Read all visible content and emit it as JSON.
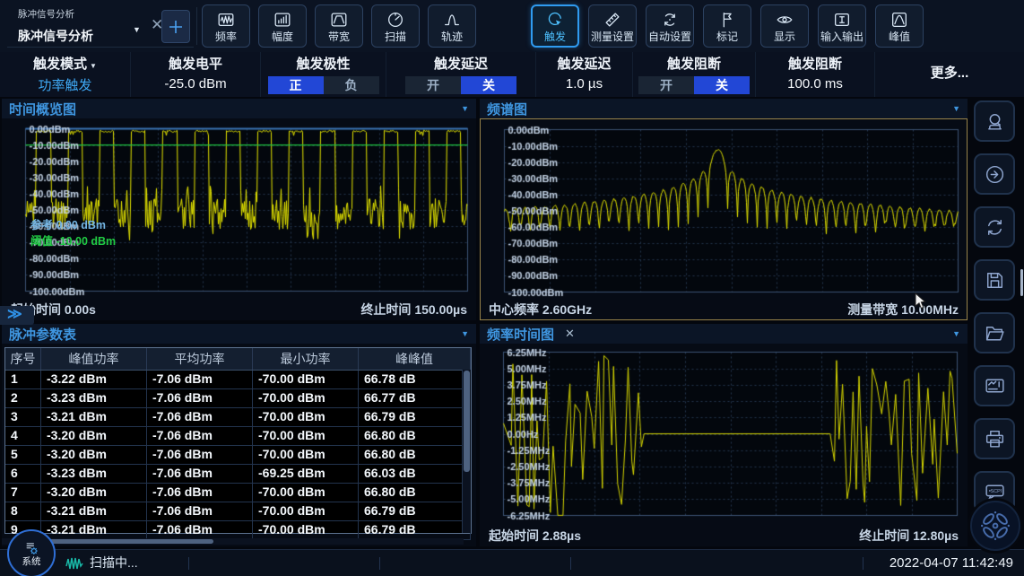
{
  "window": {
    "tab_small": "脉冲信号分析",
    "tab_title": "脉冲信号分析",
    "expand_handle": "≫"
  },
  "toolbar": {
    "buttons": [
      {
        "icon": "frequency",
        "label": "频率",
        "selected": false
      },
      {
        "icon": "amplitude",
        "label": "幅度",
        "selected": false
      },
      {
        "icon": "bandwidth",
        "label": "带宽",
        "selected": false
      },
      {
        "icon": "sweep",
        "label": "扫描",
        "selected": false
      },
      {
        "icon": "trace",
        "label": "轨迹",
        "selected": false
      },
      {
        "icon": "trigger",
        "label": "触发",
        "selected": true
      },
      {
        "icon": "measure-setup",
        "label": "测量设置",
        "selected": false
      },
      {
        "icon": "auto-setup",
        "label": "自动设置",
        "selected": false
      },
      {
        "icon": "marker",
        "label": "标记",
        "selected": false
      },
      {
        "icon": "display",
        "label": "显示",
        "selected": false
      },
      {
        "icon": "input-output",
        "label": "输入输出",
        "selected": false
      },
      {
        "icon": "peak",
        "label": "峰值",
        "selected": false
      }
    ]
  },
  "menu": {
    "columns": [
      {
        "type": "value",
        "label": "触发模式",
        "caret": true,
        "value": "功率触发",
        "accent": true
      },
      {
        "type": "value",
        "label": "触发电平",
        "value": "-25.0 dBm"
      },
      {
        "type": "toggle",
        "label": "触发极性",
        "options": [
          "正",
          "负"
        ],
        "selected": 0
      },
      {
        "type": "toggle",
        "label": "触发延迟",
        "options": [
          "开",
          "关"
        ],
        "selected": 1
      },
      {
        "type": "value",
        "label": "触发延迟",
        "value": "1.0 µs"
      },
      {
        "type": "toggle",
        "label": "触发阻断",
        "options": [
          "开",
          "关"
        ],
        "selected": 1
      },
      {
        "type": "value",
        "label": "触发阻断",
        "value": "100.0 ms"
      },
      {
        "type": "more",
        "label": "更多..."
      }
    ]
  },
  "panels": {
    "time_overview": {
      "title": "时间概览图",
      "footer_left": "起始时间 0.00s",
      "footer_right": "终止时间 150.00µs",
      "reference_label": "参考 0.00 dBm",
      "threshold_label": "阈值 -10.00 dBm"
    },
    "spectrum": {
      "title": "频谱图",
      "footer_left": "中心频率 2.60GHz",
      "footer_right": "测量带宽 10.00MHz",
      "focused": true
    },
    "pulse_table": {
      "title": "脉冲参数表",
      "headers": [
        "序号",
        "峰值功率",
        "平均功率",
        "最小功率",
        "峰峰值"
      ],
      "rows": [
        [
          "1",
          "-3.22 dBm",
          "-7.06 dBm",
          "-70.00 dBm",
          "66.78 dB"
        ],
        [
          "2",
          "-3.23 dBm",
          "-7.06 dBm",
          "-70.00 dBm",
          "66.77 dB"
        ],
        [
          "3",
          "-3.21 dBm",
          "-7.06 dBm",
          "-70.00 dBm",
          "66.79 dB"
        ],
        [
          "4",
          "-3.20 dBm",
          "-7.06 dBm",
          "-70.00 dBm",
          "66.80 dB"
        ],
        [
          "5",
          "-3.20 dBm",
          "-7.06 dBm",
          "-70.00 dBm",
          "66.80 dB"
        ],
        [
          "6",
          "-3.23 dBm",
          "-7.06 dBm",
          "-69.25 dBm",
          "66.03 dB"
        ],
        [
          "7",
          "-3.20 dBm",
          "-7.06 dBm",
          "-70.00 dBm",
          "66.80 dB"
        ],
        [
          "8",
          "-3.21 dBm",
          "-7.06 dBm",
          "-70.00 dBm",
          "66.79 dB"
        ],
        [
          "9",
          "-3.21 dBm",
          "-7.06 dBm",
          "-70.00 dBm",
          "66.79 dB"
        ]
      ]
    },
    "freq_time": {
      "title": "频率时间图",
      "close": "✕",
      "footer_left": "起始时间 2.88µs",
      "footer_right": "终止时间 12.80µs"
    }
  },
  "chart_data": [
    {
      "id": "time_overview",
      "type": "line",
      "title": "时间概览图",
      "canvas": "c-time",
      "y_ticks": [
        "0.00dBm",
        "-10.00dBm",
        "-20.00dBm",
        "-30.00dBm",
        "-40.00dBm",
        "-50.00dBm",
        "-60.00dBm",
        "-70.00dBm",
        "-80.00dBm",
        "-90.00dBm",
        "-100.00dBm"
      ],
      "y_range_dbm": [
        0,
        -100
      ],
      "x_divisions": 10,
      "grid": "dashed",
      "x_start": "0.00s",
      "x_end": "150.00µs",
      "reference_dbm": 0.0,
      "threshold_dbm": -10.0,
      "series": [
        {
          "name": "power_vs_time",
          "color": "#e6e600",
          "shape": "pulse_train",
          "pulse_count": 14,
          "duty_cycle": 0.46,
          "top_dbm": -1.6,
          "noise_range_dbm": [
            -43,
            -62
          ],
          "seed": 11
        }
      ]
    },
    {
      "id": "spectrum",
      "type": "line",
      "title": "频谱图",
      "canvas": "c-spec",
      "y_ticks": [
        "0.00dBm",
        "-10.00dBm",
        "-20.00dBm",
        "-30.00dBm",
        "-40.00dBm",
        "-50.00dBm",
        "-60.00dBm",
        "-70.00dBm",
        "-80.00dBm",
        "-90.00dBm",
        "-100.00dBm"
      ],
      "y_range_dbm": [
        0,
        -100
      ],
      "x_divisions": 10,
      "grid": "dashed",
      "center_frequency": "2.60GHz",
      "measure_bandwidth": "10.00MHz",
      "series": [
        {
          "name": "spectrum",
          "color": "#e6e600",
          "shape": "sinc",
          "peak_dbm": -12.5,
          "center_frac": 0.47,
          "lobe_count": 46,
          "null_floor_dbm": -60,
          "seed": 7
        }
      ]
    },
    {
      "id": "freq_time",
      "type": "line",
      "title": "频率时间图",
      "canvas": "c-freq",
      "y_ticks": [
        "6.25MHz",
        "5.00MHz",
        "3.75MHz",
        "2.50MHz",
        "1.25MHz",
        "0.00Hz",
        "-1.25MHz",
        "-2.50MHz",
        "-3.75MHz",
        "-5.00MHz",
        "-6.25MHz"
      ],
      "y_range_mhz": [
        6.25,
        -6.25
      ],
      "x_divisions": 10,
      "grid": "dashed",
      "x_start": "2.88µs",
      "x_end": "12.80µs",
      "series": [
        {
          "name": "freq_vs_time",
          "color": "#d8d800",
          "shape": "fm_noise_flat_noise",
          "flat_start_frac": 0.3,
          "flat_end_frac": 0.72,
          "flat_value_mhz": 0.0,
          "seed": 5
        }
      ]
    }
  ],
  "sidebar": {
    "buttons": [
      {
        "name": "preset"
      },
      {
        "name": "run"
      },
      {
        "name": "refresh"
      },
      {
        "name": "save"
      },
      {
        "name": "open"
      },
      {
        "name": "screenshot"
      },
      {
        "name": "print"
      },
      {
        "name": "scpi",
        "label": "SCPI"
      }
    ],
    "nav": {
      "name": "nav-wheel"
    }
  },
  "statusbar": {
    "system_label": "系统",
    "scan_text": "扫描中...",
    "clock": "2022-04-07 11:42:49"
  }
}
